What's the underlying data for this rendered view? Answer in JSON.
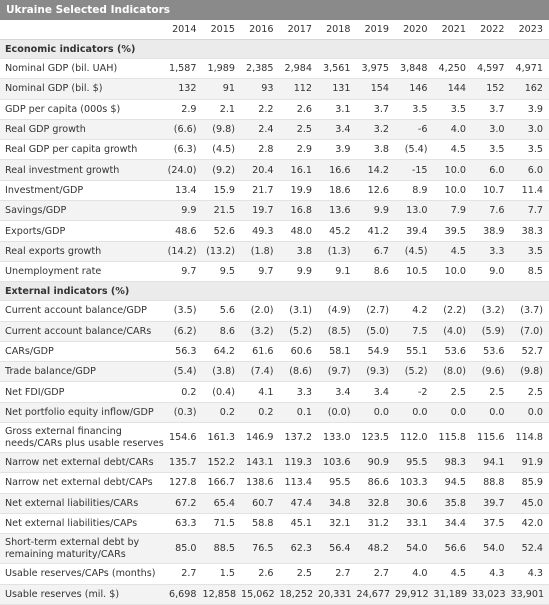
{
  "title": "Ukraine Selected Indicators",
  "years": [
    "2014",
    "2015",
    "2016",
    "2017",
    "2018",
    "2019",
    "2020",
    "2021",
    "2022",
    "2023"
  ],
  "sections": [
    {
      "heading": "Economic indicators (%)",
      "rows": [
        {
          "label": "Nominal GDP (bil. UAH)",
          "values": [
            "1,587",
            "1,989",
            "2,385",
            "2,984",
            "3,561",
            "3,975",
            "3,848",
            "4,250",
            "4,597",
            "4,971"
          ]
        },
        {
          "label": "Nominal GDP (bil. $)",
          "values": [
            "132",
            "91",
            "93",
            "112",
            "131",
            "154",
            "146",
            "144",
            "152",
            "162"
          ]
        },
        {
          "label": "GDP per capita (000s $)",
          "values": [
            "2.9",
            "2.1",
            "2.2",
            "2.6",
            "3.1",
            "3.7",
            "3.5",
            "3.5",
            "3.7",
            "3.9"
          ]
        },
        {
          "label": "Real GDP growth",
          "values": [
            "(6.6)",
            "(9.8)",
            "2.4",
            "2.5",
            "3.4",
            "3.2",
            "-6",
            "4.0",
            "3.0",
            "3.0"
          ]
        },
        {
          "label": "Real GDP per capita growth",
          "values": [
            "(6.3)",
            "(4.5)",
            "2.8",
            "2.9",
            "3.9",
            "3.8",
            "(5.4)",
            "4.5",
            "3.5",
            "3.5"
          ]
        },
        {
          "label": "Real investment growth",
          "values": [
            "(24.0)",
            "(9.2)",
            "20.4",
            "16.1",
            "16.6",
            "14.2",
            "-15",
            "10.0",
            "6.0",
            "6.0"
          ]
        },
        {
          "label": "Investment/GDP",
          "values": [
            "13.4",
            "15.9",
            "21.7",
            "19.9",
            "18.6",
            "12.6",
            "8.9",
            "10.0",
            "10.7",
            "11.4"
          ]
        },
        {
          "label": "Savings/GDP",
          "values": [
            "9.9",
            "21.5",
            "19.7",
            "16.8",
            "13.6",
            "9.9",
            "13.0",
            "7.9",
            "7.6",
            "7.7"
          ]
        },
        {
          "label": "Exports/GDP",
          "values": [
            "48.6",
            "52.6",
            "49.3",
            "48.0",
            "45.2",
            "41.2",
            "39.4",
            "39.5",
            "38.9",
            "38.3"
          ]
        },
        {
          "label": "Real exports growth",
          "values": [
            "(14.2)",
            "(13.2)",
            "(1.8)",
            "3.8",
            "(1.3)",
            "6.7",
            "(4.5)",
            "4.5",
            "3.3",
            "3.5"
          ]
        },
        {
          "label": "Unemployment rate",
          "values": [
            "9.7",
            "9.5",
            "9.7",
            "9.9",
            "9.1",
            "8.6",
            "10.5",
            "10.0",
            "9.0",
            "8.5"
          ]
        }
      ]
    },
    {
      "heading": "External indicators (%)",
      "rows": [
        {
          "label": "Current account balance/GDP",
          "values": [
            "(3.5)",
            "5.6",
            "(2.0)",
            "(3.1)",
            "(4.9)",
            "(2.7)",
            "4.2",
            "(2.2)",
            "(3.2)",
            "(3.7)"
          ]
        },
        {
          "label": "Current account balance/CARs",
          "values": [
            "(6.2)",
            "8.6",
            "(3.2)",
            "(5.2)",
            "(8.5)",
            "(5.0)",
            "7.5",
            "(4.0)",
            "(5.9)",
            "(7.0)"
          ]
        },
        {
          "label": "CARs/GDP",
          "values": [
            "56.3",
            "64.2",
            "61.6",
            "60.6",
            "58.1",
            "54.9",
            "55.1",
            "53.6",
            "53.6",
            "52.7"
          ]
        },
        {
          "label": "Trade balance/GDP",
          "values": [
            "(5.4)",
            "(3.8)",
            "(7.4)",
            "(8.6)",
            "(9.7)",
            "(9.3)",
            "(5.2)",
            "(8.0)",
            "(9.6)",
            "(9.8)"
          ]
        },
        {
          "label": "Net FDI/GDP",
          "values": [
            "0.2",
            "(0.4)",
            "4.1",
            "3.3",
            "3.4",
            "3.4",
            "-2",
            "2.5",
            "2.5",
            "2.5"
          ]
        },
        {
          "label": "Net portfolio equity inflow/GDP",
          "values": [
            "(0.3)",
            "0.2",
            "0.2",
            "0.1",
            "(0.0)",
            "0.0",
            "0.0",
            "0.0",
            "0.0",
            "0.0"
          ]
        },
        {
          "label": "Gross external financing needs/CARs plus usable reserves",
          "tall": true,
          "values": [
            "154.6",
            "161.3",
            "146.9",
            "137.2",
            "133.0",
            "123.5",
            "112.0",
            "115.8",
            "115.6",
            "114.8"
          ]
        },
        {
          "label": "Narrow net external debt/CARs",
          "values": [
            "135.7",
            "152.2",
            "143.1",
            "119.3",
            "103.6",
            "90.9",
            "95.5",
            "98.3",
            "94.1",
            "91.9"
          ]
        },
        {
          "label": "Narrow net external debt/CAPs",
          "values": [
            "127.8",
            "166.7",
            "138.6",
            "113.4",
            "95.5",
            "86.6",
            "103.3",
            "94.5",
            "88.8",
            "85.9"
          ]
        },
        {
          "label": "Net external liabilities/CARs",
          "values": [
            "67.2",
            "65.4",
            "60.7",
            "47.4",
            "34.8",
            "32.8",
            "30.6",
            "35.8",
            "39.7",
            "45.0"
          ]
        },
        {
          "label": "Net external liabilities/CAPs",
          "values": [
            "63.3",
            "71.5",
            "58.8",
            "45.1",
            "32.1",
            "31.2",
            "33.1",
            "34.4",
            "37.5",
            "42.0"
          ]
        },
        {
          "label": "Short-term external debt by remaining maturity/CARs",
          "tall": true,
          "values": [
            "85.0",
            "88.5",
            "76.5",
            "62.3",
            "56.4",
            "48.2",
            "54.0",
            "56.6",
            "54.0",
            "52.4"
          ]
        },
        {
          "label": "Usable reserves/CAPs (months)",
          "values": [
            "2.7",
            "1.5",
            "2.6",
            "2.5",
            "2.7",
            "2.7",
            "4.0",
            "4.5",
            "4.3",
            "4.3"
          ]
        },
        {
          "label": "Usable reserves (mil. $)",
          "values": [
            "6,698",
            "12,858",
            "15,062",
            "18,252",
            "20,331",
            "24,677",
            "29,912",
            "31,189",
            "33,023",
            "33,901"
          ]
        }
      ]
    }
  ]
}
